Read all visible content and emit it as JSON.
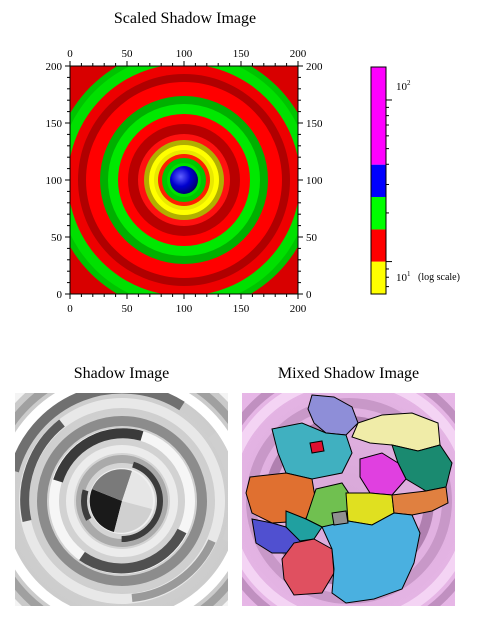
{
  "chart_data": [
    {
      "type": "heatmap",
      "title": "Scaled Shadow Image",
      "x_ticks": [
        "0",
        "50",
        "100",
        "150",
        "200"
      ],
      "y_ticks": [
        "0",
        "50",
        "100",
        "150",
        "200"
      ],
      "xlim": [
        0,
        200
      ],
      "ylim": [
        0,
        200
      ],
      "center": [
        100,
        100
      ],
      "ring_colors": [
        "#0000e0",
        "#00c800",
        "#ff0000",
        "#ffff00",
        "#ff00ff"
      ],
      "colorbar": {
        "scale": "log",
        "range": [
          6.3,
          160
        ],
        "bands": [
          {
            "color": "#ffff00",
            "from": 6.3,
            "to": 10
          },
          {
            "color": "#ff0000",
            "from": 10,
            "to": 15.8
          },
          {
            "color": "#00ff00",
            "from": 15.8,
            "to": 25.1
          },
          {
            "color": "#0000ff",
            "from": 25.1,
            "to": 39.8
          },
          {
            "color": "#ff00ff",
            "from": 39.8,
            "to": 160
          }
        ],
        "labels": [
          {
            "base": "10",
            "exp": "2"
          },
          {
            "base": "10",
            "exp": "1"
          }
        ],
        "note": "(log scale)"
      }
    },
    {
      "type": "heatmap",
      "title": "Shadow Image",
      "colormap": "grayscale"
    },
    {
      "type": "heatmap",
      "title": "Mixed Shadow Image",
      "overlay": "regions map"
    }
  ]
}
